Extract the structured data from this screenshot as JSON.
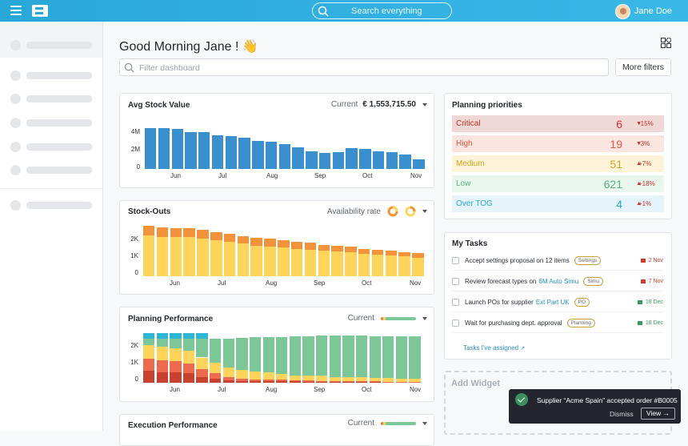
{
  "header": {
    "search_placeholder": "Search everything",
    "user_name": "Jane Doe"
  },
  "greeting": "Good Morning Jane ! 👋",
  "filter": {
    "placeholder": "Filter dashboard",
    "more_filters": "More filters"
  },
  "avg_stock": {
    "title": "Avg Stock Value",
    "current_label": "Current",
    "current_value": "€ 1,553,715.50",
    "chart_data": {
      "type": "bar",
      "yticks": [
        "4M",
        "2M",
        "0"
      ],
      "xticks": [
        "Jun",
        "Jul",
        "Aug",
        "Sep",
        "Oct",
        "Nov"
      ],
      "ylim": [
        0,
        5
      ],
      "values": [
        4.3,
        4.3,
        4.2,
        3.9,
        3.9,
        3.6,
        3.5,
        3.3,
        3.0,
        2.9,
        2.6,
        2.3,
        1.9,
        1.7,
        1.8,
        2.2,
        2.1,
        1.9,
        1.8,
        1.5,
        1.0
      ]
    }
  },
  "stockouts": {
    "title": "Stock-Outs",
    "availability_label": "Availability rate",
    "chart_data": {
      "type": "bar",
      "yticks": [
        "2K",
        "1K",
        "0"
      ],
      "xticks": [
        "Jun",
        "Jul",
        "Aug",
        "Sep",
        "Oct",
        "Nov"
      ],
      "ylim": [
        0,
        3000
      ],
      "series": [
        {
          "name": "",
          "color": "#ffd45a",
          "values": [
            2400,
            2300,
            2300,
            2300,
            2200,
            2100,
            2000,
            1900,
            1800,
            1750,
            1700,
            1600,
            1550,
            1500,
            1450,
            1400,
            1300,
            1250,
            1200,
            1150,
            1100
          ]
        },
        {
          "name": "",
          "color": "#f2923b",
          "values": [
            550,
            550,
            500,
            500,
            500,
            500,
            500,
            450,
            450,
            450,
            400,
            400,
            400,
            350,
            350,
            350,
            300,
            300,
            300,
            250,
            250
          ]
        }
      ]
    }
  },
  "planning_perf": {
    "title": "Planning Performance",
    "current_label": "Current",
    "chart_data": {
      "type": "bar",
      "yticks": [
        "2K",
        "1K",
        "0"
      ],
      "xticks": [
        "Jun",
        "Jul",
        "Aug",
        "Sep",
        "Oct",
        "Nov"
      ],
      "ylim": [
        0,
        3000
      ],
      "series": [
        {
          "name": "",
          "color": "#c8402e",
          "values": [
            700,
            600,
            600,
            550,
            350,
            250,
            150,
            100,
            100,
            100,
            100,
            80,
            60,
            60,
            50,
            50,
            50,
            40,
            40,
            30,
            30
          ]
        },
        {
          "name": "",
          "color": "#ee6a4e",
          "values": [
            750,
            750,
            700,
            600,
            450,
            300,
            200,
            150,
            100,
            100,
            80,
            60,
            60,
            50,
            50,
            50,
            40,
            40,
            30,
            30,
            30
          ]
        },
        {
          "name": "",
          "color": "#ffd45a",
          "values": [
            800,
            800,
            750,
            750,
            700,
            650,
            550,
            500,
            450,
            400,
            350,
            300,
            300,
            300,
            250,
            250,
            250,
            200,
            200,
            200,
            200
          ]
        },
        {
          "name": "",
          "color": "#7bc797",
          "values": [
            350,
            450,
            550,
            700,
            1100,
            1400,
            1700,
            1900,
            2050,
            2100,
            2200,
            2300,
            2350,
            2400,
            2450,
            2450,
            2450,
            2500,
            2500,
            2500,
            2500
          ]
        },
        {
          "name": "",
          "color": "#2fb6d6",
          "values": [
            350,
            350,
            350,
            350,
            350,
            0,
            0,
            0,
            0,
            0,
            0,
            0,
            0,
            0,
            0,
            0,
            0,
            0,
            0,
            0,
            0
          ]
        }
      ]
    }
  },
  "exec_perf": {
    "title": "Execution Performance",
    "current_label": "Current"
  },
  "priorities": {
    "title": "Planning priorities",
    "rows": [
      {
        "label": "Critical",
        "value": "6",
        "dir": "down",
        "delta": "-15%",
        "bg": "#f0d8d6",
        "fg": "#c9342a"
      },
      {
        "label": "High",
        "value": "19",
        "dir": "down",
        "delta": "-3%",
        "bg": "#fbe5e1",
        "fg": "#e4583e"
      },
      {
        "label": "Medium",
        "value": "51",
        "dir": "up",
        "delta": "+7%",
        "bg": "#fdf3d9",
        "fg": "#d7a31a"
      },
      {
        "label": "Low",
        "value": "621",
        "dir": "up",
        "delta": "+18%",
        "bg": "#e9f6ee",
        "fg": "#55b07a"
      },
      {
        "label": "Over TOG",
        "value": "4",
        "dir": "up",
        "delta": "+1%",
        "bg": "#e4f4fa",
        "fg": "#2aa7d9"
      }
    ]
  },
  "tasks": {
    "title": "My Tasks",
    "items": [
      {
        "text": "Accept settings proposal on 12 items",
        "link": "",
        "tag": "Settings",
        "due": "2 Nov",
        "due_color": "#d0392b"
      },
      {
        "text": "Review forecast types on",
        "link": "6M Auto Simu",
        "tag": "Simu",
        "due": "7 Nov",
        "due_color": "#d0392b"
      },
      {
        "text": "Launch POs for supplier",
        "link": "Ext Part UK",
        "tag": "PO",
        "due": "18 Dec",
        "due_color": "#3a9a5c"
      },
      {
        "text": "Wait for purchasing dept. approval",
        "link": "",
        "tag": "Planning",
        "due": "18 Dec",
        "due_color": "#3a9a5c"
      }
    ],
    "assigned_link": "Tasks I've assigned"
  },
  "add_widget": "Add Widget",
  "toast": {
    "message": "Supplier “Acme Spain” accepted order #B0005",
    "dismiss": "Dismiss",
    "view": "View"
  }
}
